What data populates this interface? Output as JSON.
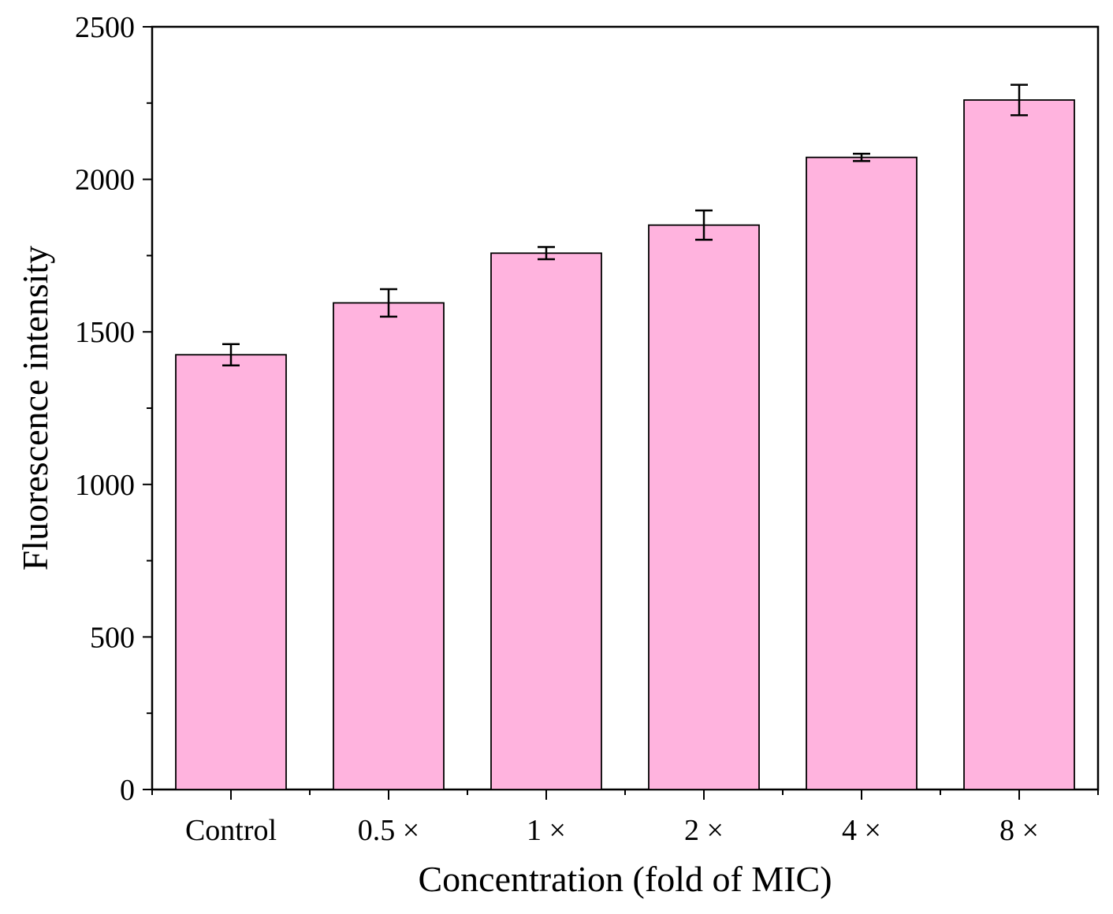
{
  "chart_data": {
    "type": "bar",
    "title": "",
    "xlabel": "Concentration (fold of MIC)",
    "ylabel": "Fluorescence intensity",
    "categories": [
      "Control",
      "0.5 ×",
      "1 ×",
      "2 ×",
      "4 ×",
      "8 ×"
    ],
    "values": [
      1425,
      1595,
      1758,
      1850,
      2072,
      2260
    ],
    "errors": [
      35,
      45,
      20,
      48,
      12,
      50
    ],
    "ylim": [
      0,
      2500
    ],
    "yticks": [
      0,
      500,
      1000,
      1500,
      2000,
      2500
    ],
    "y_minor_step": 250,
    "grid": false,
    "legend": false
  },
  "colors": {
    "bar_fill": "#ffb3de",
    "bar_stroke": "#000000",
    "axis": "#000000"
  }
}
